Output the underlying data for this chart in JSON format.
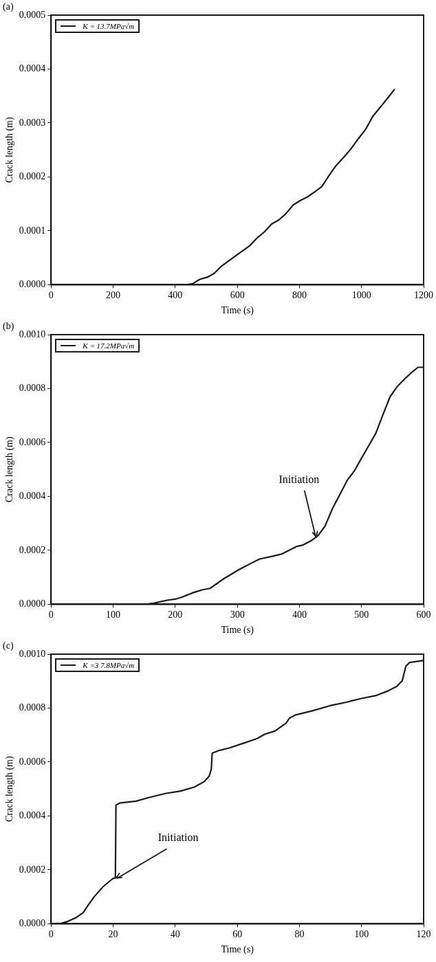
{
  "chart_data": [
    {
      "type": "line",
      "title": "(a)",
      "xlabel": "Time (s)",
      "ylabel": "Crack length (m)",
      "legend": "top left",
      "xlim": [
        0,
        1200
      ],
      "xticks": [
        0,
        200,
        400,
        600,
        800,
        1000,
        1200
      ],
      "ylim": [
        0,
        0.0005
      ],
      "yticks": [
        {
          "value": 0,
          "label": "0.0000"
        },
        {
          "value": 0.0001,
          "label": "0.0001"
        },
        {
          "value": 0.0002,
          "label": "0.0002"
        },
        {
          "value": 0.0003,
          "label": "0.0003"
        },
        {
          "value": 0.0004,
          "label": "0.0004"
        },
        {
          "value": 0.0005,
          "label": "0.0005"
        }
      ],
      "x": [
        0,
        436,
        456,
        479,
        503,
        525,
        548,
        595,
        639,
        664,
        687,
        711,
        733,
        755,
        780,
        802,
        826,
        851,
        872,
        897,
        918,
        942,
        966,
        990,
        1013,
        1036,
        1070,
        1106
      ],
      "series": [
        {
          "name": "K = 13.7MPa√m",
          "color": "#1a1a1a",
          "values": [
            0,
            0,
            2e-06,
            1e-05,
            1.4e-05,
            2.1e-05,
            3.4e-05,
            5.4e-05,
            7.2e-05,
            8.7e-05,
            9.8e-05,
            0.000113,
            0.00012,
            0.000131,
            0.000148,
            0.000156,
            0.000163,
            0.000173,
            0.000182,
            0.000204,
            0.000221,
            0.000236,
            0.000252,
            0.000271,
            0.000288,
            0.000312,
            0.000336,
            0.000362
          ]
        }
      ]
    },
    {
      "type": "line",
      "title": "(b)",
      "xlabel": "Time (s)",
      "ylabel": "Crack length (m)",
      "legend": "top left",
      "xlim": [
        0,
        600
      ],
      "xticks": [
        0,
        100,
        200,
        300,
        400,
        500,
        600
      ],
      "ylim": [
        0,
        0.001
      ],
      "yticks": [
        {
          "value": 0,
          "label": "0.0000"
        },
        {
          "value": 0.0002,
          "label": "0.0002"
        },
        {
          "value": 0.0004,
          "label": "0.0004"
        },
        {
          "value": 0.0006,
          "label": "0.0006"
        },
        {
          "value": 0.0008,
          "label": "0.0008"
        },
        {
          "value": 0.001,
          "label": "0.0010"
        }
      ],
      "x": [
        0,
        153,
        165,
        187,
        200,
        210,
        230,
        244,
        256,
        279,
        303,
        323,
        336,
        356,
        371,
        384,
        395,
        406,
        419,
        430,
        441,
        453,
        465,
        477,
        488,
        498,
        511,
        523,
        534,
        546,
        558,
        570,
        581,
        591,
        600
      ],
      "series": [
        {
          "name": "K = 17.2MPa√m",
          "color": "#1a1a1a",
          "values": [
            0,
            0,
            4e-06,
            1.5e-05,
            1.9e-05,
            2.6e-05,
            4.4e-05,
            5.4e-05,
            5.9e-05,
            9.6e-05,
            0.000129,
            0.000153,
            0.000168,
            0.000178,
            0.000186,
            0.000201,
            0.000214,
            0.00022,
            0.000236,
            0.000255,
            0.000289,
            0.000354,
            0.000407,
            0.00046,
            0.000493,
            0.000534,
            0.000586,
            0.000634,
            0.0007,
            0.00077,
            0.000809,
            0.000837,
            0.00086,
            0.000879,
            0.000879
          ]
        }
      ],
      "annotations": [
        {
          "text": "Initiation",
          "x": 427,
          "y": 0.00025
        }
      ]
    },
    {
      "type": "line",
      "title": "(c)",
      "xlabel": "Time (s)",
      "ylabel": "Crack length (m)",
      "legend": "top left",
      "xlim": [
        0,
        120
      ],
      "xticks": [
        0,
        20,
        40,
        60,
        80,
        100,
        120
      ],
      "ylim": [
        0,
        0.001
      ],
      "yticks": [
        {
          "value": 0,
          "label": "0.0000"
        },
        {
          "value": 0.0002,
          "label": "0.0002"
        },
        {
          "value": 0.0004,
          "label": "0.0004"
        },
        {
          "value": 0.0006,
          "label": "0.0006"
        },
        {
          "value": 0.0008,
          "label": "0.0008"
        },
        {
          "value": 0.001,
          "label": "0.0010"
        }
      ],
      "x": [
        0,
        3.4,
        5.4,
        7.9,
        10.3,
        12.0,
        14.0,
        16.8,
        19.7,
        20.7,
        20.9,
        22.1,
        27.4,
        31.4,
        37.1,
        41.6,
        46.1,
        49.3,
        50.9,
        51.6,
        51.9,
        54.2,
        57.4,
        62.3,
        66.4,
        68.8,
        72.1,
        75.7,
        76.8,
        78.6,
        84.2,
        89.9,
        94.8,
        99.7,
        104.5,
        108.6,
        111.4,
        113.1,
        114.3,
        115.5,
        120
      ],
      "series": [
        {
          "name": "K =3 7.8MPa√m",
          "color": "#1a1a1a",
          "values": [
            0,
            2e-06,
            9e-06,
            2.2e-05,
            4.1e-05,
            7e-05,
            0.000102,
            0.000138,
            0.000166,
            0.000172,
            0.00044,
            0.000448,
            0.000455,
            0.000468,
            0.000484,
            0.000492,
            0.000507,
            0.000527,
            0.000547,
            0.000573,
            0.000633,
            0.000643,
            0.000652,
            0.000671,
            0.000687,
            0.000703,
            0.000715,
            0.000744,
            0.000763,
            0.000774,
            0.00079,
            0.000809,
            0.000821,
            0.000835,
            0.000846,
            0.000864,
            0.000881,
            0.000901,
            0.000956,
            0.000969,
            0.000977
          ]
        }
      ],
      "annotations": [
        {
          "text": "Initiation",
          "x": 21,
          "y": 0.00017
        }
      ]
    }
  ]
}
